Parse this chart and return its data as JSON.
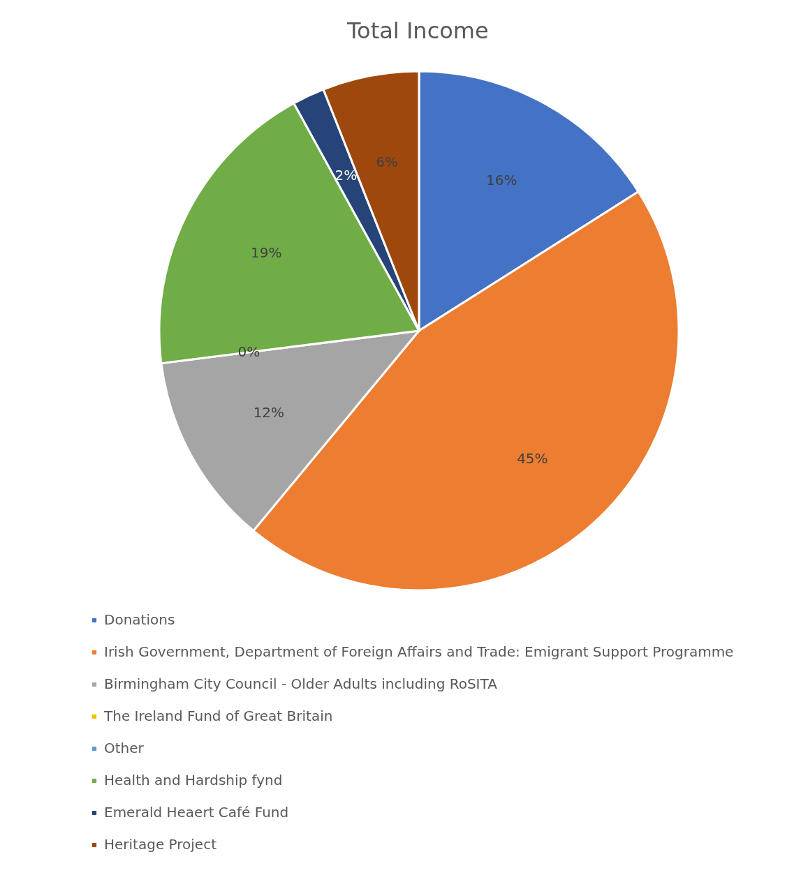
{
  "chart_data": {
    "type": "pie",
    "title": "Total Income",
    "categories": [
      "Donations",
      "Irish Government, Department of Foreign Affairs and Trade: Emigrant Support Programme",
      "Birmingham City Council - Older Adults including RoSITA",
      "The Ireland Fund of Great Britain",
      "Other",
      "Health and Hardship fynd",
      "Emerald Heaert Café Fund",
      "Heritage Project"
    ],
    "values": [
      16,
      45,
      12,
      0,
      0,
      19,
      2,
      6
    ],
    "colors": [
      "#4472c4",
      "#ed7d31",
      "#a5a5a5",
      "#ffc000",
      "#5b9bd5",
      "#70ad47",
      "#264478",
      "#9e480e"
    ],
    "value_labels": [
      "16%",
      "45%",
      "12%",
      null,
      "0%",
      "19%",
      "2%",
      "6%"
    ],
    "legend": "bottom"
  }
}
